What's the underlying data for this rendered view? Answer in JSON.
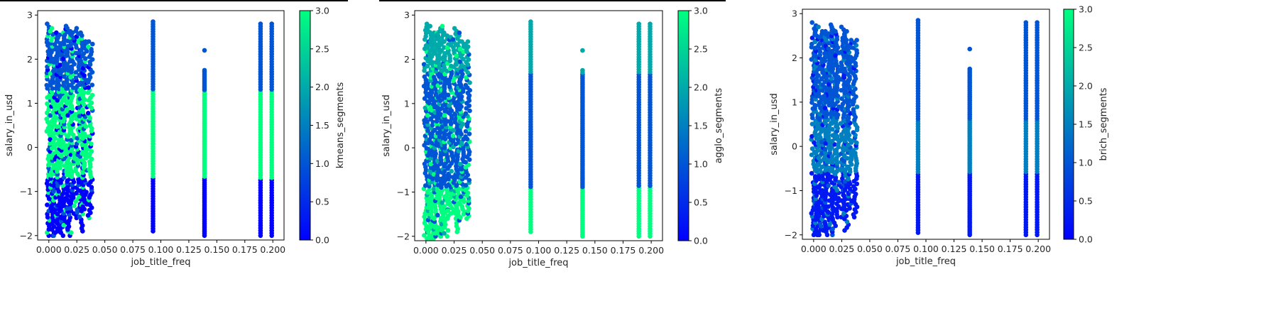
{
  "colormap": {
    "name": "winter",
    "low": "#0000ff",
    "high": "#00ff80"
  },
  "panels": [
    {
      "xlabel": "job_title_freq",
      "ylabel": "salary_in_usd",
      "colorbar_label": "kmeans_segments",
      "colorbar_ticks": [
        "0.0",
        "0.5",
        "1.0",
        "1.5",
        "2.0",
        "2.5",
        "3.0"
      ],
      "xticks": [
        "0.000",
        "0.025",
        "0.050",
        "0.075",
        "0.100",
        "0.125",
        "0.150",
        "0.175",
        "0.200"
      ],
      "yticks": [
        "−2",
        "−1",
        "0",
        "1",
        "2",
        "3"
      ]
    },
    {
      "xlabel": "job_title_freq",
      "ylabel": "salary_in_usd",
      "colorbar_label": "agglo_segments",
      "colorbar_ticks": [
        "0.0",
        "0.5",
        "1.0",
        "1.5",
        "2.0",
        "2.5",
        "3.0"
      ],
      "xticks": [
        "0.000",
        "0.025",
        "0.050",
        "0.075",
        "0.100",
        "0.125",
        "0.150",
        "0.175",
        "0.200"
      ],
      "yticks": [
        "−2",
        "−1",
        "0",
        "1",
        "2",
        "3"
      ]
    },
    {
      "xlabel": "job_title_freq",
      "ylabel": "salary_in_usd",
      "colorbar_label": "brich_segments",
      "colorbar_ticks": [
        "0.0",
        "0.5",
        "1.0",
        "1.5",
        "2.0",
        "2.5",
        "3.0"
      ],
      "xticks": [
        "0.000",
        "0.025",
        "0.050",
        "0.075",
        "0.100",
        "0.125",
        "0.150",
        "0.175",
        "0.200"
      ],
      "yticks": [
        "−2",
        "−1",
        "0",
        "1",
        "2",
        "3"
      ]
    }
  ],
  "chart_data": [
    {
      "type": "scatter",
      "xlabel": "job_title_freq",
      "ylabel": "salary_in_usd",
      "colorbar": "kmeans_segments",
      "xlim": [
        -0.01,
        0.21
      ],
      "ylim": [
        -2.1,
        3.1
      ],
      "clim": [
        0,
        3
      ],
      "columns": [
        {
          "x": 0.0,
          "ymin": -2.0,
          "ymax": 2.8
        },
        {
          "x": 0.003,
          "ymin": -2.0,
          "ymax": 2.7
        },
        {
          "x": 0.006,
          "ymin": -2.0,
          "ymax": 2.6
        },
        {
          "x": 0.009,
          "ymin": -1.9,
          "ymax": 2.55
        },
        {
          "x": 0.012,
          "ymin": -2.0,
          "ymax": 2.6
        },
        {
          "x": 0.015,
          "ymin": -1.9,
          "ymax": 2.75
        },
        {
          "x": 0.018,
          "ymin": -2.0,
          "ymax": 2.7
        },
        {
          "x": 0.021,
          "ymin": -1.5,
          "ymax": 2.6
        },
        {
          "x": 0.026,
          "ymin": -1.6,
          "ymax": 2.7
        },
        {
          "x": 0.029,
          "ymin": -1.9,
          "ymax": 2.6
        },
        {
          "x": 0.032,
          "ymin": -1.4,
          "ymax": 2.4
        },
        {
          "x": 0.037,
          "ymin": -1.6,
          "ymax": 2.4
        },
        {
          "x": 0.093,
          "ymin": -1.9,
          "ymax": 2.85
        },
        {
          "x": 0.139,
          "ymin": -2.0,
          "ymax": 1.75
        },
        {
          "x": 0.139,
          "ymin": 2.2,
          "ymax": 2.2
        },
        {
          "x": 0.189,
          "ymin": -2.0,
          "ymax": 2.8
        },
        {
          "x": 0.199,
          "ymin": -2.0,
          "ymax": 2.8
        }
      ],
      "segments": [
        {
          "ymin": 1.3,
          "ymax": 3.0,
          "value": 1
        },
        {
          "ymin": -0.7,
          "ymax": 1.3,
          "value": 3
        },
        {
          "ymin": -2.1,
          "ymax": -0.7,
          "value": 0
        }
      ]
    },
    {
      "type": "scatter",
      "xlabel": "job_title_freq",
      "ylabel": "salary_in_usd",
      "colorbar": "agglo_segments",
      "xlim": [
        -0.01,
        0.21
      ],
      "ylim": [
        -2.1,
        3.1
      ],
      "clim": [
        0,
        3
      ],
      "columns": [
        {
          "x": 0.0,
          "ymin": -2.05,
          "ymax": 2.8
        },
        {
          "x": 0.003,
          "ymin": -2.05,
          "ymax": 2.75
        },
        {
          "x": 0.006,
          "ymin": -2.05,
          "ymax": 2.6
        },
        {
          "x": 0.009,
          "ymin": -2.0,
          "ymax": 2.6
        },
        {
          "x": 0.012,
          "ymin": -2.0,
          "ymax": 2.7
        },
        {
          "x": 0.015,
          "ymin": -2.0,
          "ymax": 2.75
        },
        {
          "x": 0.018,
          "ymin": -2.0,
          "ymax": 2.6
        },
        {
          "x": 0.021,
          "ymin": -1.6,
          "ymax": 2.5
        },
        {
          "x": 0.026,
          "ymin": -1.6,
          "ymax": 2.7
        },
        {
          "x": 0.029,
          "ymin": -1.9,
          "ymax": 2.6
        },
        {
          "x": 0.032,
          "ymin": -1.5,
          "ymax": 2.4
        },
        {
          "x": 0.037,
          "ymin": -1.6,
          "ymax": 2.4
        },
        {
          "x": 0.093,
          "ymin": -1.9,
          "ymax": 2.85
        },
        {
          "x": 0.139,
          "ymin": -2.0,
          "ymax": 1.75
        },
        {
          "x": 0.139,
          "ymin": 2.2,
          "ymax": 2.2
        },
        {
          "x": 0.189,
          "ymin": -2.0,
          "ymax": 2.8
        },
        {
          "x": 0.199,
          "ymin": -2.0,
          "ymax": 2.8
        }
      ],
      "segments": [
        {
          "ymin": 1.7,
          "ymax": 3.0,
          "value": 2
        },
        {
          "ymin": -0.9,
          "ymax": 1.7,
          "value": 1
        },
        {
          "ymin": -2.1,
          "ymax": -0.9,
          "value": 3
        }
      ]
    },
    {
      "type": "scatter",
      "xlabel": "job_title_freq",
      "ylabel": "salary_in_usd",
      "colorbar": "brich_segments",
      "xlim": [
        -0.01,
        0.21
      ],
      "ylim": [
        -2.1,
        3.1
      ],
      "clim": [
        0,
        3
      ],
      "columns": [
        {
          "x": 0.0,
          "ymin": -2.0,
          "ymax": 2.8
        },
        {
          "x": 0.003,
          "ymin": -2.0,
          "ymax": 2.7
        },
        {
          "x": 0.006,
          "ymin": -2.0,
          "ymax": 2.6
        },
        {
          "x": 0.009,
          "ymin": -1.9,
          "ymax": 2.55
        },
        {
          "x": 0.012,
          "ymin": -2.0,
          "ymax": 2.6
        },
        {
          "x": 0.015,
          "ymin": -1.9,
          "ymax": 2.75
        },
        {
          "x": 0.018,
          "ymin": -2.0,
          "ymax": 2.7
        },
        {
          "x": 0.021,
          "ymin": -1.6,
          "ymax": 2.6
        },
        {
          "x": 0.026,
          "ymin": -1.6,
          "ymax": 2.7
        },
        {
          "x": 0.029,
          "ymin": -1.9,
          "ymax": 2.6
        },
        {
          "x": 0.032,
          "ymin": -1.4,
          "ymax": 2.4
        },
        {
          "x": 0.037,
          "ymin": -1.6,
          "ymax": 2.4
        },
        {
          "x": 0.093,
          "ymin": -1.95,
          "ymax": 2.85
        },
        {
          "x": 0.139,
          "ymin": -2.0,
          "ymax": 1.75
        },
        {
          "x": 0.139,
          "ymin": 2.2,
          "ymax": 2.2
        },
        {
          "x": 0.189,
          "ymin": -2.0,
          "ymax": 2.8
        },
        {
          "x": 0.199,
          "ymin": -2.0,
          "ymax": 2.8
        }
      ],
      "segments": [
        {
          "ymin": 0.6,
          "ymax": 3.0,
          "value": 1
        },
        {
          "ymin": -0.6,
          "ymax": 0.6,
          "value": 1.5
        },
        {
          "ymin": -2.1,
          "ymax": -0.6,
          "value": 0.3
        }
      ]
    }
  ]
}
